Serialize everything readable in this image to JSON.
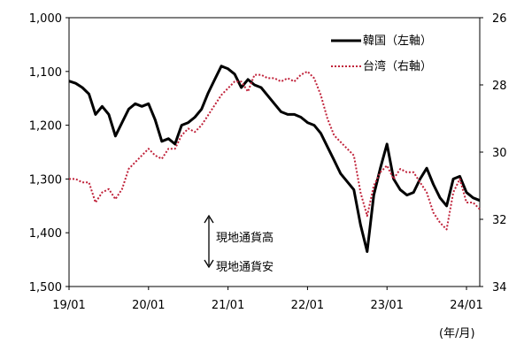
{
  "chart_data": {
    "type": "line",
    "xlabel": "(年/月)",
    "x_ticks": [
      "19/01",
      "20/01",
      "21/01",
      "22/01",
      "23/01",
      "24/01"
    ],
    "x_range": [
      "2019-01",
      "2024-03"
    ],
    "y_left": {
      "ticks": [
        "1,000",
        "1,100",
        "1,200",
        "1,300",
        "1,400",
        "1,500"
      ],
      "range": [
        1000,
        1500
      ],
      "inverted": true
    },
    "y_right": {
      "ticks": [
        "26",
        "28",
        "30",
        "32",
        "34"
      ],
      "range": [
        26,
        34
      ],
      "inverted": true
    },
    "annotation": {
      "up": "現地通貨高",
      "down": "現地通貨安"
    },
    "grid": false,
    "legend_position": "top-right",
    "series": [
      {
        "name": "韓国（左軸）",
        "axis": "left",
        "color": "#000000",
        "style": "solid",
        "x": [
          "2019-01",
          "2019-02",
          "2019-03",
          "2019-04",
          "2019-05",
          "2019-06",
          "2019-07",
          "2019-08",
          "2019-09",
          "2019-10",
          "2019-11",
          "2019-12",
          "2020-01",
          "2020-02",
          "2020-03",
          "2020-04",
          "2020-05",
          "2020-06",
          "2020-07",
          "2020-08",
          "2020-09",
          "2020-10",
          "2020-11",
          "2020-12",
          "2021-01",
          "2021-02",
          "2021-03",
          "2021-04",
          "2021-05",
          "2021-06",
          "2021-07",
          "2021-08",
          "2021-09",
          "2021-10",
          "2021-11",
          "2021-12",
          "2022-01",
          "2022-02",
          "2022-03",
          "2022-04",
          "2022-05",
          "2022-06",
          "2022-07",
          "2022-08",
          "2022-09",
          "2022-10",
          "2022-11",
          "2022-12",
          "2023-01",
          "2023-02",
          "2023-03",
          "2023-04",
          "2023-05",
          "2023-06",
          "2023-07",
          "2023-08",
          "2023-09",
          "2023-10",
          "2023-11",
          "2023-12",
          "2024-01",
          "2024-02",
          "2024-03"
        ],
        "values": [
          1118,
          1122,
          1130,
          1142,
          1180,
          1165,
          1180,
          1220,
          1195,
          1170,
          1160,
          1165,
          1160,
          1190,
          1230,
          1225,
          1235,
          1200,
          1195,
          1185,
          1170,
          1140,
          1115,
          1090,
          1095,
          1105,
          1130,
          1115,
          1125,
          1130,
          1145,
          1160,
          1175,
          1180,
          1180,
          1185,
          1195,
          1200,
          1215,
          1240,
          1265,
          1290,
          1305,
          1320,
          1385,
          1435,
          1330,
          1280,
          1235,
          1300,
          1320,
          1330,
          1325,
          1300,
          1280,
          1310,
          1335,
          1350,
          1300,
          1295,
          1325,
          1335,
          1340
        ]
      },
      {
        "name": "台湾（右軸）",
        "axis": "right",
        "color": "#c0223a",
        "style": "dotted",
        "x": [
          "2019-01",
          "2019-02",
          "2019-03",
          "2019-04",
          "2019-05",
          "2019-06",
          "2019-07",
          "2019-08",
          "2019-09",
          "2019-10",
          "2019-11",
          "2019-12",
          "2020-01",
          "2020-02",
          "2020-03",
          "2020-04",
          "2020-05",
          "2020-06",
          "2020-07",
          "2020-08",
          "2020-09",
          "2020-10",
          "2020-11",
          "2020-12",
          "2021-01",
          "2021-02",
          "2021-03",
          "2021-04",
          "2021-05",
          "2021-06",
          "2021-07",
          "2021-08",
          "2021-09",
          "2021-10",
          "2021-11",
          "2021-12",
          "2022-01",
          "2022-02",
          "2022-03",
          "2022-04",
          "2022-05",
          "2022-06",
          "2022-07",
          "2022-08",
          "2022-09",
          "2022-10",
          "2022-11",
          "2022-12",
          "2023-01",
          "2023-02",
          "2023-03",
          "2023-04",
          "2023-05",
          "2023-06",
          "2023-07",
          "2023-08",
          "2023-09",
          "2023-10",
          "2023-11",
          "2023-12",
          "2024-01",
          "2024-02",
          "2024-03"
        ],
        "values": [
          30.8,
          30.8,
          30.9,
          30.9,
          31.5,
          31.2,
          31.1,
          31.4,
          31.1,
          30.5,
          30.3,
          30.1,
          29.9,
          30.1,
          30.2,
          29.9,
          29.9,
          29.5,
          29.3,
          29.4,
          29.2,
          28.9,
          28.6,
          28.3,
          28.1,
          27.9,
          27.9,
          28.2,
          27.7,
          27.7,
          27.8,
          27.8,
          27.9,
          27.8,
          27.9,
          27.7,
          27.6,
          27.8,
          28.3,
          29.0,
          29.5,
          29.7,
          29.9,
          30.1,
          31.2,
          31.9,
          31.0,
          30.6,
          30.4,
          30.8,
          30.5,
          30.6,
          30.6,
          30.9,
          31.2,
          31.8,
          32.1,
          32.3,
          31.2,
          30.8,
          31.5,
          31.5,
          31.7
        ]
      }
    ]
  }
}
